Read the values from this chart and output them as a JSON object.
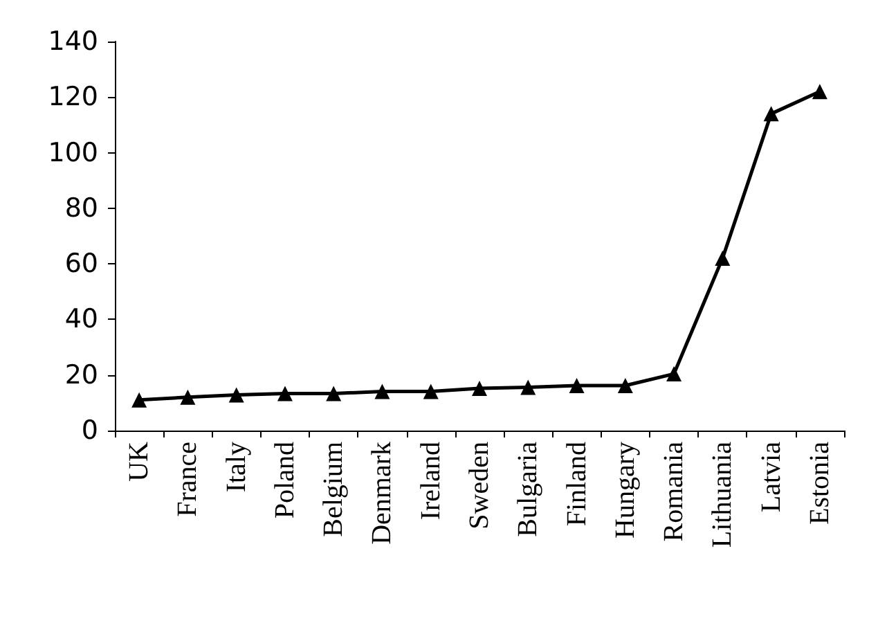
{
  "chart_data": {
    "type": "line",
    "categories": [
      "UK",
      "France",
      "Italy",
      "Poland",
      "Belgium",
      "Denmark",
      "Ireland",
      "Sweden",
      "Bulgaria",
      "Finland",
      "Hungary",
      "Romania",
      "Lithuania",
      "Latvia",
      "Estonia"
    ],
    "series": [
      {
        "color": "#000000",
        "values": [
          11,
          12,
          12.8,
          13.3,
          13.3,
          14.1,
          14.1,
          15.2,
          15.6,
          16.2,
          16.2,
          20.4,
          62,
          114,
          122
        ]
      }
    ],
    "ylim": [
      0,
      140
    ],
    "yticks": [
      0,
      20,
      40,
      60,
      80,
      100,
      120,
      140
    ],
    "grid": false,
    "marker": "triangle",
    "line_style": "solid"
  }
}
